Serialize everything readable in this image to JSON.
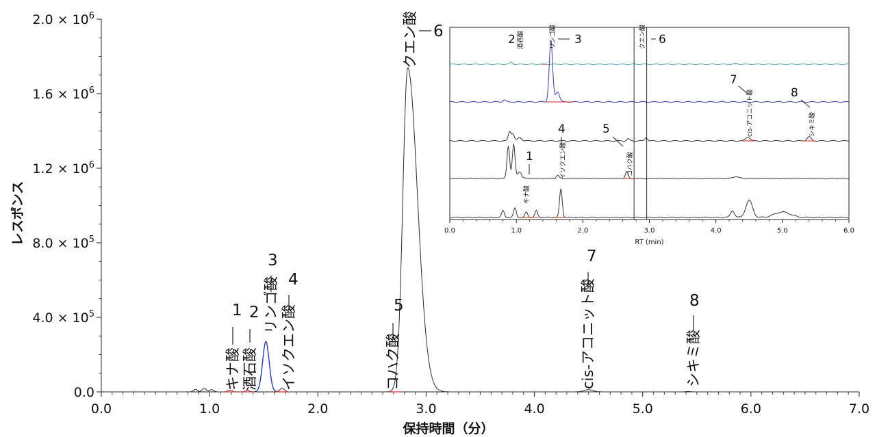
{
  "chart_data": {
    "type": "line",
    "xlabel": "保持時間（分）",
    "ylabel": "レスポンス",
    "xlim": [
      0.0,
      7.0
    ],
    "ylim": [
      0,
      2000000
    ],
    "x_ticks": [
      "0.0",
      "1.0",
      "2.0",
      "3.0",
      "4.0",
      "5.0",
      "6.0",
      "7.0"
    ],
    "y_ticks": [
      {
        "mantissa": "0.0",
        "exp": ""
      },
      {
        "mantissa": "4.0 × 10",
        "exp": "5"
      },
      {
        "mantissa": "8.0 × 10",
        "exp": "5"
      },
      {
        "mantissa": "1.2 × 10",
        "exp": "6"
      },
      {
        "mantissa": "1.6 × 10",
        "exp": "6"
      },
      {
        "mantissa": "2.0 × 10",
        "exp": "6"
      }
    ],
    "peaks": [
      {
        "id": "1",
        "name": "キナ酸",
        "rt": 1.19,
        "height": 9000,
        "color": "#d84b4b"
      },
      {
        "id": "2",
        "name": "酒石酸",
        "rt": 1.35,
        "height": 6000,
        "color": "#d84b4b"
      },
      {
        "id": "3",
        "name": "リンゴ酸",
        "rt": 1.52,
        "height": 270000,
        "color": "#2b3fb8"
      },
      {
        "id": "4",
        "name": "イソクエン酸",
        "rt": 1.67,
        "height": 20000,
        "color": "#d84b4b"
      },
      {
        "id": "5",
        "name": "コハク酸",
        "rt": 2.72,
        "height": 4000,
        "color": "#d84b4b"
      },
      {
        "id": "6",
        "name": "クエン酸",
        "rt": 2.83,
        "height": 1740000,
        "color": "#222222"
      },
      {
        "id": "7",
        "name": "cis-アコニット酸",
        "rt": 4.5,
        "height": 12000,
        "color": "#555555"
      },
      {
        "id": "8",
        "name": "シキミ酸",
        "rt": 5.42,
        "height": 2000,
        "color": "#555555"
      }
    ],
    "noise": [
      {
        "rt": 0.87,
        "height": 14000
      },
      {
        "rt": 0.95,
        "height": 20000
      },
      {
        "rt": 1.02,
        "height": 12000
      }
    ],
    "inset": {
      "xlabel": "RT (min)",
      "xlim": [
        0.0,
        6.0
      ],
      "x_ticks": [
        "0.0",
        "1.0",
        "2.0",
        "3.0",
        "4.0",
        "5.0",
        "6.0"
      ],
      "traces": [
        {
          "color": "#4aa0b8"
        },
        {
          "color": "#3a3aa0"
        },
        {
          "color": "#333333"
        },
        {
          "color": "#333333"
        },
        {
          "color": "#333333"
        }
      ],
      "labels": [
        {
          "id": "1",
          "name": "キナ酸"
        },
        {
          "id": "2",
          "name": "酒石酸"
        },
        {
          "id": "3",
          "name": "リンゴ酸"
        },
        {
          "id": "4",
          "name": "イソクエン酸"
        },
        {
          "id": "5",
          "name": "コハク酸"
        },
        {
          "id": "6",
          "name": "クエン酸"
        },
        {
          "id": "7",
          "name": "cis-アコニット酸"
        },
        {
          "id": "8",
          "name": "シキミ酸"
        }
      ]
    }
  }
}
